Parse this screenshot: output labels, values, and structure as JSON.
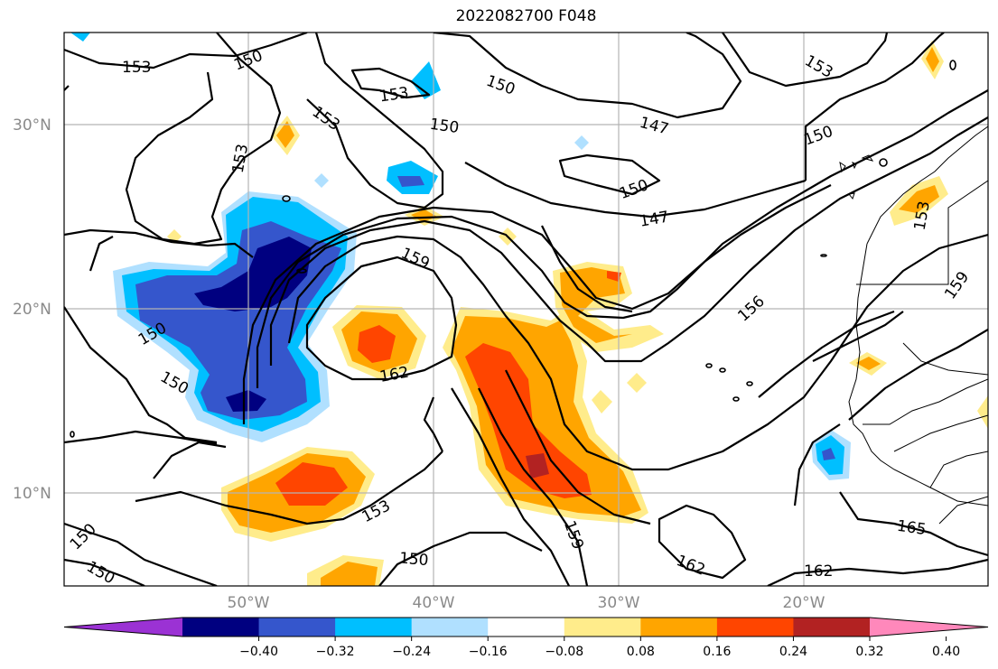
{
  "title": "2022082700 F048",
  "lat_labels": [
    "30°N",
    "20°N",
    "10°N"
  ],
  "lon_labels": [
    "50°W",
    "40°W",
    "30°W",
    "20°W"
  ],
  "colorbar": {
    "ticks": [
      "−0.40",
      "−0.32",
      "−0.24",
      "−0.16",
      "−0.08",
      "0.08",
      "0.16",
      "0.24",
      "0.32",
      "0.40"
    ],
    "colors": [
      "#9b32d4",
      "#000080",
      "#3556cc",
      "#00bfff",
      "#b0e0ff",
      "#ffffff",
      "#ffec8b",
      "#ffa500",
      "#ff4500",
      "#b22222",
      "#ff88bb"
    ]
  },
  "contour_labels": [
    "153",
    "150",
    "153",
    "150",
    "150",
    "153",
    "150",
    "147",
    "153",
    "150",
    "150",
    "147",
    "153",
    "159",
    "156",
    "159",
    "150",
    "162",
    "150",
    "153",
    "159",
    "150",
    "162",
    "162",
    "165",
    "150",
    "153"
  ]
}
